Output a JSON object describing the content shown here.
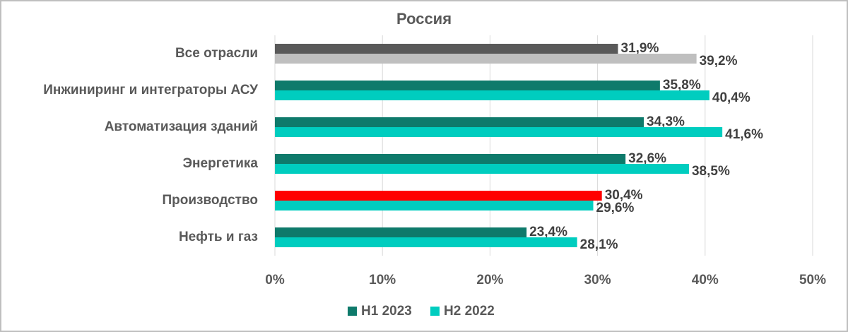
{
  "chart_data": {
    "type": "bar",
    "orientation": "horizontal",
    "title": "Россия",
    "categories": [
      "Все отрасли",
      "Инжиниринг и интеграторы АСУ",
      "Автоматизация зданий",
      "Энергетика",
      "Производство",
      "Нефть и газ"
    ],
    "series": [
      {
        "name": "H1 2023",
        "color": "#0e7a6b",
        "colors": [
          "#595959",
          "#0e7a6b",
          "#0e7a6b",
          "#0e7a6b",
          "#ff0000",
          "#0e7a6b"
        ],
        "values": [
          31.9,
          35.8,
          34.3,
          32.6,
          30.4,
          23.4
        ],
        "value_labels": [
          "31,9%",
          "35,8%",
          "34,3%",
          "32,6%",
          "30,4%",
          "23,4%"
        ]
      },
      {
        "name": "H2 2022",
        "color": "#00cdbf",
        "colors": [
          "#bfbfbf",
          "#00cdbf",
          "#00cdbf",
          "#00cdbf",
          "#00cdbf",
          "#00cdbf"
        ],
        "values": [
          39.2,
          40.4,
          41.6,
          38.5,
          29.6,
          28.1
        ],
        "value_labels": [
          "39,2%",
          "40,4%",
          "41,6%",
          "38,5%",
          "29,6%",
          "28,1%"
        ]
      }
    ],
    "xlim": [
      0,
      50
    ],
    "xticks": [
      {
        "value": 0,
        "label": "0%"
      },
      {
        "value": 10,
        "label": "10%"
      },
      {
        "value": 20,
        "label": "20%"
      },
      {
        "value": 30,
        "label": "30%"
      },
      {
        "value": 40,
        "label": "40%"
      },
      {
        "value": 50,
        "label": "50%"
      }
    ],
    "grid": true,
    "legend": "bottom"
  }
}
